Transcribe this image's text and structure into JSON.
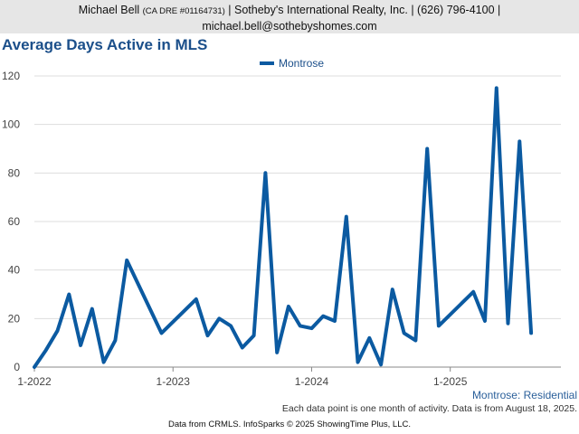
{
  "header": {
    "name": "Michael Bell",
    "license": "(CA DRE #01164731)",
    "rest_line1": "| Sotheby's International Realty, Inc. | (626) 796-4100 |",
    "email": "michael.bell@sothebyshomes.com"
  },
  "chart_data": {
    "type": "line",
    "title": "Average Days Active in MLS",
    "xlabel": "",
    "ylabel": "",
    "ylim": [
      0,
      120
    ],
    "yticks": [
      "0",
      "20",
      "40",
      "60",
      "80",
      "100",
      "120"
    ],
    "xticks": [
      "1-2022",
      "1-2023",
      "1-2024",
      "1-2025"
    ],
    "legend_position": "top-center",
    "grid": "horizontal",
    "line_color": "#0b5aa1",
    "series": [
      {
        "name": "Montrose",
        "points": [
          [
            "2022-01",
            0
          ],
          [
            "2022-02",
            7
          ],
          [
            "2022-03",
            15
          ],
          [
            "2022-04",
            30
          ],
          [
            "2022-05",
            9
          ],
          [
            "2022-06",
            24
          ],
          [
            "2022-07",
            2
          ],
          [
            "2022-08",
            11
          ],
          [
            "2022-09",
            44
          ],
          [
            "2022-12",
            14
          ],
          [
            "2023-03",
            28
          ],
          [
            "2023-04",
            13
          ],
          [
            "2023-05",
            20
          ],
          [
            "2023-06",
            17
          ],
          [
            "2023-07",
            8
          ],
          [
            "2023-08",
            13
          ],
          [
            "2023-09",
            80
          ],
          [
            "2023-10",
            6
          ],
          [
            "2023-11",
            25
          ],
          [
            "2023-12",
            17
          ],
          [
            "2024-01",
            16
          ],
          [
            "2024-02",
            21
          ],
          [
            "2024-03",
            19
          ],
          [
            "2024-04",
            62
          ],
          [
            "2024-05",
            2
          ],
          [
            "2024-06",
            12
          ],
          [
            "2024-07",
            1
          ],
          [
            "2024-08",
            32
          ],
          [
            "2024-09",
            14
          ],
          [
            "2024-10",
            11
          ],
          [
            "2024-11",
            90
          ],
          [
            "2024-12",
            17
          ],
          [
            "2025-03",
            31
          ],
          [
            "2025-04",
            19
          ],
          [
            "2025-05",
            115
          ],
          [
            "2025-06",
            18
          ],
          [
            "2025-07",
            93
          ],
          [
            "2025-08",
            14
          ]
        ]
      }
    ]
  },
  "series_label": "Montrose: Residential",
  "footnote": "Each data point is one month of activity. Data is from August 18, 2025.",
  "credit": "Data from CRMLS. InfoSparks © 2025 ShowingTime Plus, LLC."
}
